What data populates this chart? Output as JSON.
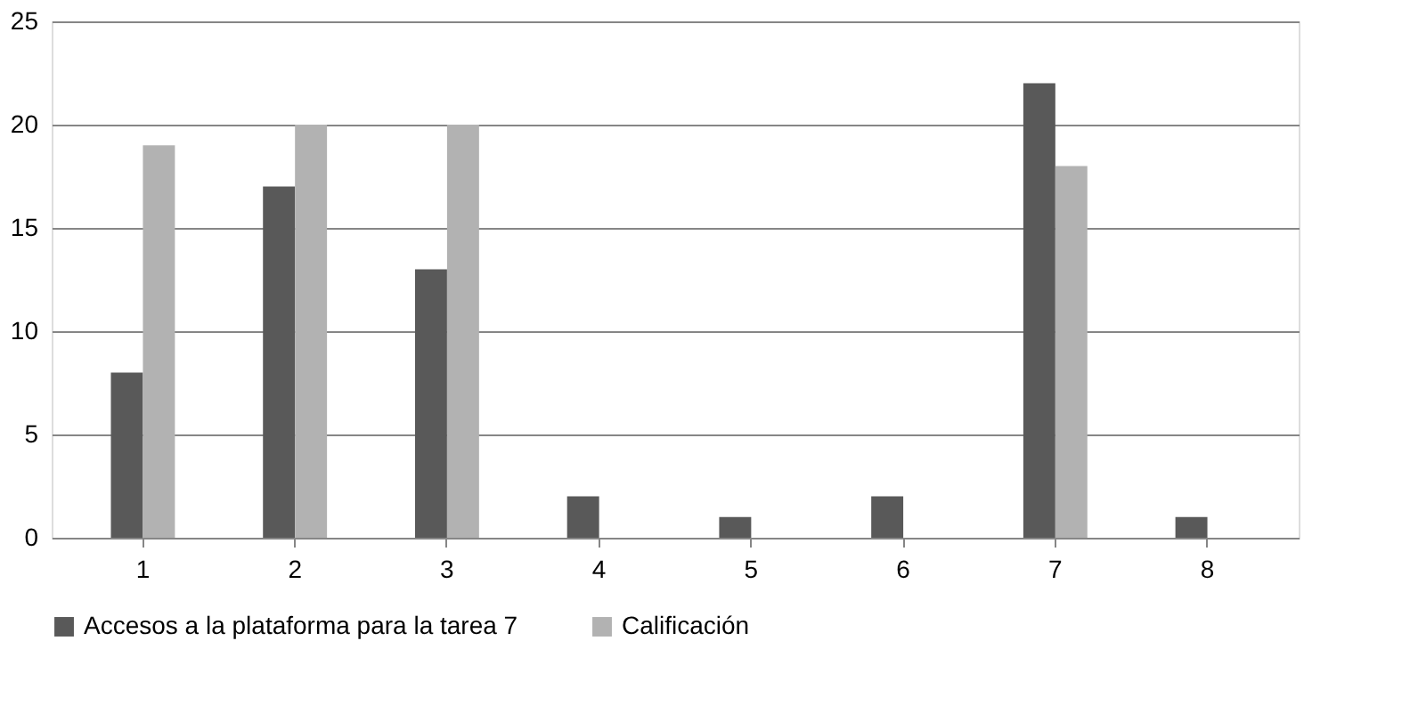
{
  "chart_data": {
    "type": "bar",
    "categories": [
      "1",
      "2",
      "3",
      "4",
      "5",
      "6",
      "7",
      "8"
    ],
    "series": [
      {
        "name": "Accesos a la plataforma para la tarea 7",
        "color": "#595959",
        "values": [
          8,
          17,
          13,
          2,
          1,
          2,
          22,
          1
        ]
      },
      {
        "name": "Calificación",
        "color": "#b2b2b2",
        "values": [
          19,
          20,
          20,
          0,
          0,
          0,
          18,
          0
        ]
      }
    ],
    "ylim": [
      0,
      25
    ],
    "yticks": [
      0,
      5,
      10,
      15,
      20,
      25
    ],
    "grid": "y",
    "legend": "bottom"
  }
}
